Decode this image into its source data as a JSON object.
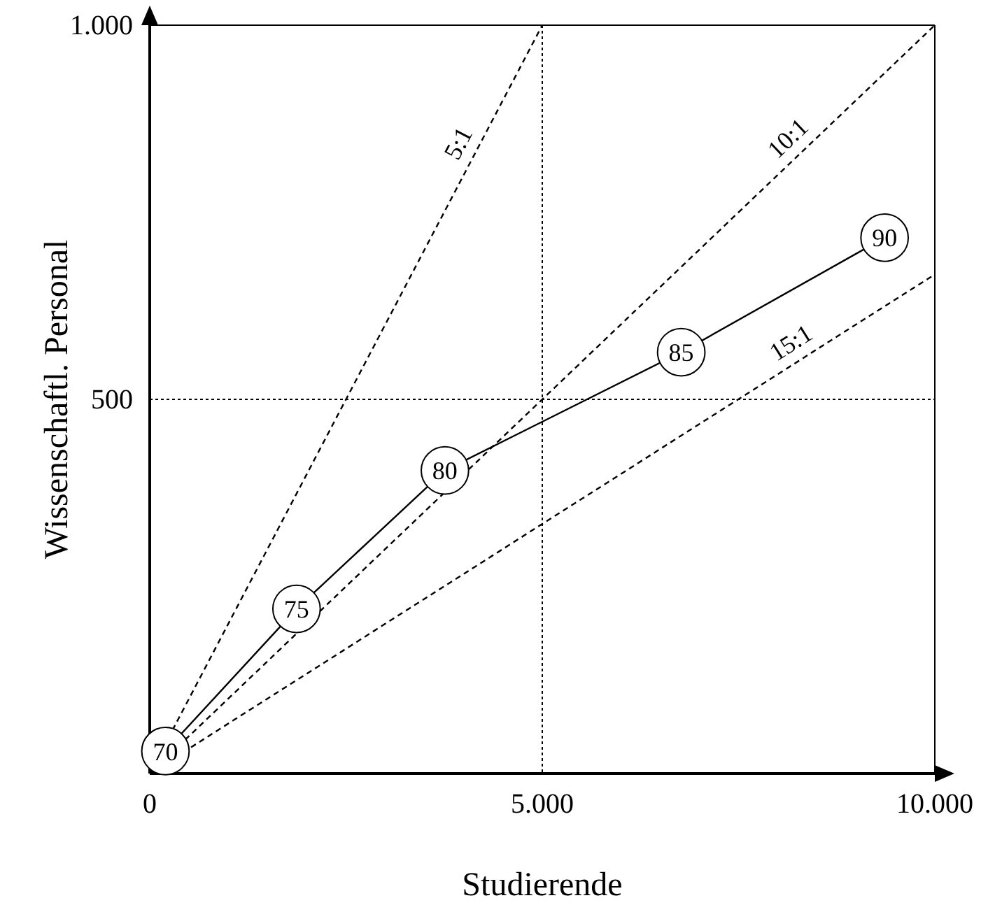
{
  "chart_data": {
    "type": "line",
    "xlabel": "Studierende",
    "ylabel": "Wissenschaftl. Personal",
    "xlim": [
      0,
      10000
    ],
    "ylim": [
      0,
      1000
    ],
    "xticks": [
      {
        "value": 0,
        "label": "0"
      },
      {
        "value": 5000,
        "label": "5.000"
      },
      {
        "value": 10000,
        "label": "10.000"
      }
    ],
    "yticks": [
      {
        "value": 0,
        "label": null
      },
      {
        "value": 500,
        "label": "500"
      },
      {
        "value": 1000,
        "label": "1.000"
      }
    ],
    "grid": false,
    "series": [
      {
        "color": "#000000",
        "marker": "circle",
        "line_style": "solid",
        "x": [
          200,
          1870,
          3760,
          6770,
          9360
        ],
        "values": [
          30,
          220,
          405,
          563,
          716
        ]
      },
      {
        "name": "5:1",
        "color": "#000000",
        "marker": "none",
        "line_style": "dashed",
        "x": [
          0,
          5000
        ],
        "values": [
          0,
          1000
        ]
      },
      {
        "name": "10:1",
        "color": "#000000",
        "marker": "none",
        "line_style": "dashed",
        "x": [
          0,
          10000
        ],
        "values": [
          0,
          1000
        ]
      },
      {
        "name": "15:1",
        "color": "#000000",
        "marker": "none",
        "line_style": "dashed",
        "x": [
          0,
          10000
        ],
        "values": [
          0,
          667
        ]
      }
    ],
    "ref_lines": [
      {
        "axis": "x",
        "value": 5000,
        "line_style": "dotted",
        "color": "#000000"
      },
      {
        "axis": "y",
        "value": 500,
        "line_style": "dotted",
        "color": "#000000"
      }
    ],
    "annotations": [
      {
        "text": "70",
        "x": 200,
        "y": 30
      },
      {
        "text": "75",
        "x": 1870,
        "y": 220
      },
      {
        "text": "80",
        "x": 3760,
        "y": 405
      },
      {
        "text": "85",
        "x": 6770,
        "y": 563
      },
      {
        "text": "90",
        "x": 9360,
        "y": 716
      }
    ]
  }
}
